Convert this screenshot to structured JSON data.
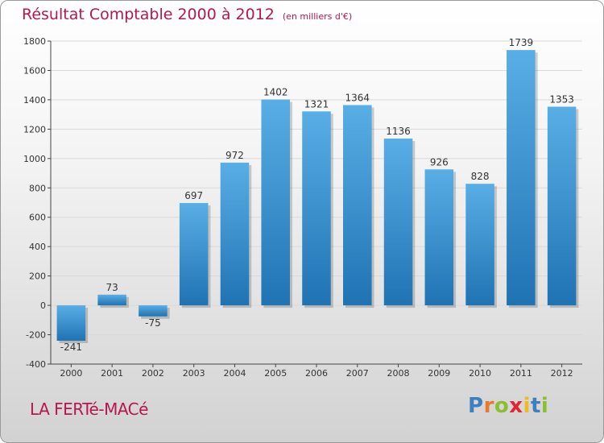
{
  "header": {
    "title": "Résultat Comptable 2000 à 2012",
    "unit": "(en milliers d'€)"
  },
  "footer": {
    "commune": "LA FERTé-MACé",
    "logo_text": "Proxiti",
    "logo_colors": [
      "#3d7fc1",
      "#e8792b",
      "#8bbf2f",
      "#e2262f",
      "#f1b81f",
      "#3d7fc1",
      "#8bbf2f"
    ]
  },
  "colors": {
    "title": "#b5174f",
    "bar_light": "#5aaee6",
    "bar_dark": "#1f73b3",
    "grid": "#d9d9d9",
    "axis": "#444444"
  },
  "chart_data": {
    "type": "bar",
    "categories": [
      "2000",
      "2001",
      "2002",
      "2003",
      "2004",
      "2005",
      "2006",
      "2007",
      "2008",
      "2009",
      "2010",
      "2011",
      "2012"
    ],
    "values": [
      -241,
      73,
      -75,
      697,
      972,
      1402,
      1321,
      1364,
      1136,
      926,
      828,
      1739,
      1353
    ],
    "value_labels": [
      "-241",
      "73",
      "-75",
      "697",
      "972",
      "1402",
      "1321",
      "1364",
      "1136",
      "926",
      "828",
      "1739",
      "1353"
    ],
    "ylim": [
      -400,
      1800
    ],
    "yticks": [
      -400,
      -200,
      0,
      200,
      400,
      600,
      800,
      1000,
      1200,
      1400,
      1600,
      1800
    ],
    "ytick_labels": [
      "-400",
      "-200",
      "0",
      "200",
      "400",
      "600",
      "800",
      "1000",
      "1200",
      "1400",
      "1600",
      "1800"
    ],
    "grid": true,
    "legend": "none",
    "xlabel": "",
    "ylabel": ""
  }
}
